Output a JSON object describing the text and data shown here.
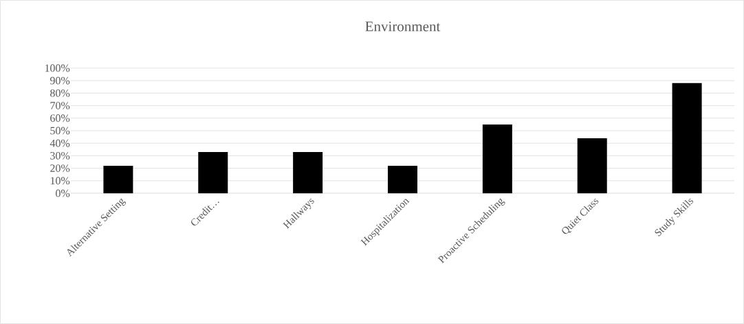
{
  "chart_data": {
    "type": "bar",
    "title": "Environment",
    "categories": [
      "Alternative Setting",
      "Credit…",
      "Hallways",
      "Hospitalization",
      "Proactive Scheduling",
      "Quiet Class",
      "Study Skills"
    ],
    "values": [
      22,
      33,
      33,
      22,
      55,
      44,
      88
    ],
    "color": "#000000",
    "ylim": [
      0,
      100
    ],
    "yticks": [
      {
        "value": 0,
        "label": "0%"
      },
      {
        "value": 10,
        "label": "10%"
      },
      {
        "value": 20,
        "label": "20%"
      },
      {
        "value": 30,
        "label": "30%"
      },
      {
        "value": 40,
        "label": "40%"
      },
      {
        "value": 50,
        "label": "50%"
      },
      {
        "value": 60,
        "label": "60%"
      },
      {
        "value": 70,
        "label": "70%"
      },
      {
        "value": 80,
        "label": "80%"
      },
      {
        "value": 90,
        "label": "90%"
      },
      {
        "value": 100,
        "label": "100%"
      }
    ],
    "grid": "y"
  }
}
